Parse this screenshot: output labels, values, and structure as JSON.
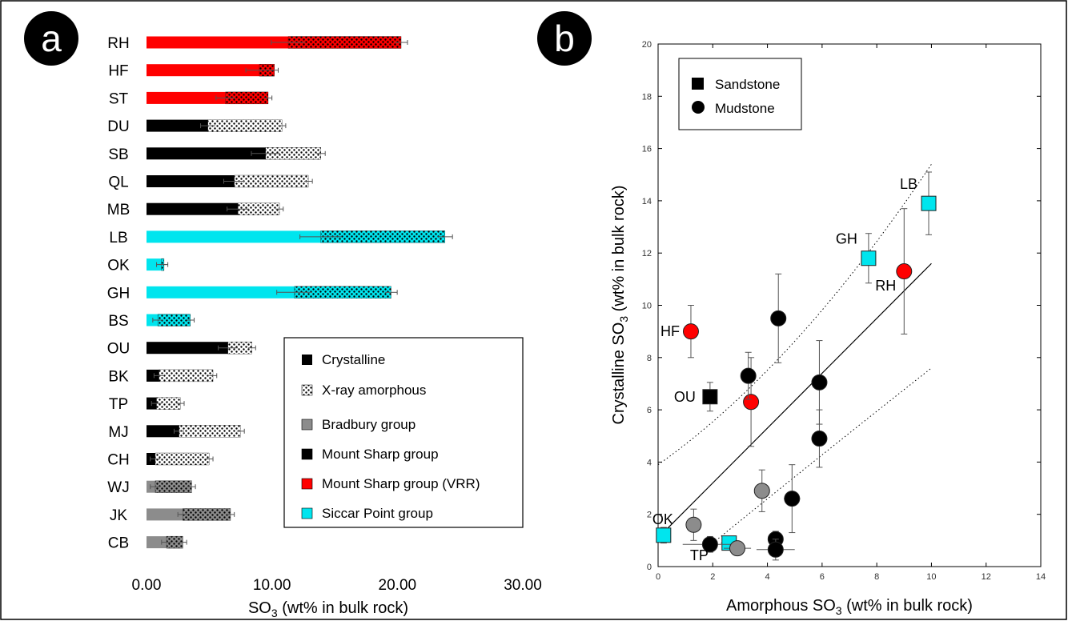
{
  "panel_a": {
    "badge": "a",
    "xlabel_main": "SO",
    "xlabel_sub": "3",
    "xlabel_rest": " (wt% in bulk rock)"
  },
  "panel_b": {
    "badge": "b",
    "xlabel_main": "Amorphous SO",
    "xlabel_sub": "3",
    "xlabel_rest": " (wt% in bulk rock)",
    "ylabel_main": "Crystalline SO",
    "ylabel_sub": "3",
    "ylabel_rest": " (wt% in bulk rock)"
  },
  "legend_a": {
    "crystalline": "Crystalline",
    "amorphous": "X-ray amorphous",
    "groups": [
      {
        "label": "Bradbury group",
        "color": "#8c8c8c"
      },
      {
        "label": "Mount Sharp group",
        "color": "#000000"
      },
      {
        "label": "Mount Sharp group (VRR)",
        "color": "#ff0000"
      },
      {
        "label": "Siccar Point group",
        "color": "#00e5ee"
      }
    ]
  },
  "legend_b": {
    "sandstone": "Sandstone",
    "mudstone": "Mudstone"
  },
  "colors": {
    "bradbury": "#8c8c8c",
    "mount_sharp": "#000000",
    "vrr": "#ff0000",
    "siccar": "#00e5ee"
  },
  "chart_data": [
    {
      "type": "bar",
      "stacked": true,
      "orientation": "horizontal",
      "xlabel": "SO3 (wt% in bulk rock)",
      "xlim": [
        0,
        30
      ],
      "xticks": [
        "0.00",
        "10.00",
        "20.00",
        "30.00"
      ],
      "categories": [
        "RH",
        "HF",
        "ST",
        "DU",
        "SB",
        "QL",
        "MB",
        "LB",
        "OK",
        "GH",
        "BS",
        "OU",
        "BK",
        "TP",
        "MJ",
        "CH",
        "WJ",
        "JK",
        "CB"
      ],
      "groups": [
        "vrr",
        "vrr",
        "vrr",
        "mount_sharp",
        "mount_sharp",
        "mount_sharp",
        "mount_sharp",
        "siccar",
        "siccar",
        "siccar",
        "siccar",
        "mount_sharp",
        "mount_sharp",
        "mount_sharp",
        "mount_sharp",
        "mount_sharp",
        "bradbury",
        "bradbury",
        "bradbury"
      ],
      "series": [
        {
          "name": "Crystalline",
          "values": [
            11.3,
            9.0,
            6.3,
            4.9,
            9.5,
            7.0,
            7.3,
            13.9,
            1.2,
            11.8,
            0.9,
            6.5,
            1.0,
            0.8,
            2.6,
            0.7,
            0.7,
            2.9,
            1.6
          ]
        },
        {
          "name": "X-ray amorphous",
          "values": [
            9.0,
            1.2,
            3.4,
            5.9,
            4.4,
            5.9,
            3.3,
            9.9,
            0.2,
            7.7,
            2.6,
            1.9,
            4.3,
            1.9,
            4.9,
            4.3,
            2.9,
            3.8,
            1.3
          ]
        }
      ]
    },
    {
      "type": "scatter",
      "xlabel": "Amorphous SO3 (wt% in bulk rock)",
      "ylabel": "Crystalline SO3 (wt% in bulk rock)",
      "xlim": [
        0,
        14
      ],
      "ylim": [
        0,
        20
      ],
      "xticks": [
        0,
        2,
        4,
        6,
        8,
        10,
        12,
        14
      ],
      "yticks": [
        0,
        2,
        4,
        6,
        8,
        10,
        12,
        14,
        16,
        18,
        20
      ],
      "points": [
        {
          "label": "LB",
          "x": 9.9,
          "y": 13.9,
          "group": "siccar",
          "shape": "square",
          "xerr": 0.2,
          "yerr": 1.2
        },
        {
          "label": "GH",
          "x": 7.7,
          "y": 11.8,
          "group": "siccar",
          "shape": "square",
          "xerr": 0.2,
          "yerr": 0.95
        },
        {
          "label": "RH",
          "x": 9.0,
          "y": 11.3,
          "group": "vrr",
          "shape": "circle",
          "xerr": 0.2,
          "yerr": 2.4
        },
        {
          "label": "HF",
          "x": 1.2,
          "y": 9.0,
          "group": "vrr",
          "shape": "circle",
          "xerr": 0.15,
          "yerr": 1.0
        },
        {
          "label": "",
          "x": 3.4,
          "y": 6.3,
          "group": "vrr",
          "shape": "circle",
          "xerr": 0.2,
          "yerr": 1.7
        },
        {
          "label": "OU",
          "x": 1.9,
          "y": 6.5,
          "group": "mount_sharp",
          "shape": "square",
          "xerr": 0.1,
          "yerr": 0.55
        },
        {
          "label": "OK",
          "x": 0.2,
          "y": 1.2,
          "group": "siccar",
          "shape": "square",
          "xerr": 0.1,
          "yerr": 0.3
        },
        {
          "label": "",
          "x": 2.6,
          "y": 0.9,
          "group": "siccar",
          "shape": "square",
          "xerr": 0.3,
          "yerr": 0.2
        },
        {
          "label": "TP",
          "x": 1.9,
          "y": 0.85,
          "group": "mount_sharp",
          "shape": "circle",
          "xerr": 1.0,
          "yerr": 0.3
        },
        {
          "label": "",
          "x": 3.3,
          "y": 7.3,
          "group": "mount_sharp",
          "shape": "circle",
          "xerr": 0.1,
          "yerr": 0.9
        },
        {
          "label": "",
          "x": 4.4,
          "y": 9.5,
          "group": "mount_sharp",
          "shape": "circle",
          "xerr": 0.1,
          "yerr": 1.7
        },
        {
          "label": "",
          "x": 5.9,
          "y": 7.05,
          "group": "mount_sharp",
          "shape": "circle",
          "xerr": 0.1,
          "yerr": 1.6
        },
        {
          "label": "",
          "x": 5.9,
          "y": 4.9,
          "group": "mount_sharp",
          "shape": "circle",
          "xerr": 0.1,
          "yerr": 1.1
        },
        {
          "label": "",
          "x": 4.9,
          "y": 2.6,
          "group": "mount_sharp",
          "shape": "circle",
          "xerr": 0.3,
          "yerr": 1.3
        },
        {
          "label": "",
          "x": 4.3,
          "y": 1.05,
          "group": "mount_sharp",
          "shape": "circle",
          "xerr": 0.2,
          "yerr": 0.3
        },
        {
          "label": "",
          "x": 4.3,
          "y": 0.65,
          "group": "mount_sharp",
          "shape": "circle",
          "xerr": 0.7,
          "yerr": 0.4
        },
        {
          "label": "",
          "x": 3.8,
          "y": 2.9,
          "group": "bradbury",
          "shape": "circle",
          "xerr": 0.1,
          "yerr": 0.8
        },
        {
          "label": "",
          "x": 1.3,
          "y": 1.6,
          "group": "bradbury",
          "shape": "circle",
          "xerr": 0.1,
          "yerr": 0.6
        },
        {
          "label": "",
          "x": 2.9,
          "y": 0.7,
          "group": "bradbury",
          "shape": "circle",
          "xerr": 0.5,
          "yerr": 0.2
        }
      ],
      "fit_line": {
        "x": [
          0,
          10
        ],
        "y": [
          1.1,
          11.6
        ]
      },
      "confidence_bands": [
        {
          "x": [
            0,
            10
          ],
          "y": [
            3.9,
            15.4
          ]
        },
        {
          "x": [
            2.0,
            10
          ],
          "y": [
            0.9,
            7.6
          ]
        }
      ],
      "legend_placement": "top-left"
    }
  ]
}
